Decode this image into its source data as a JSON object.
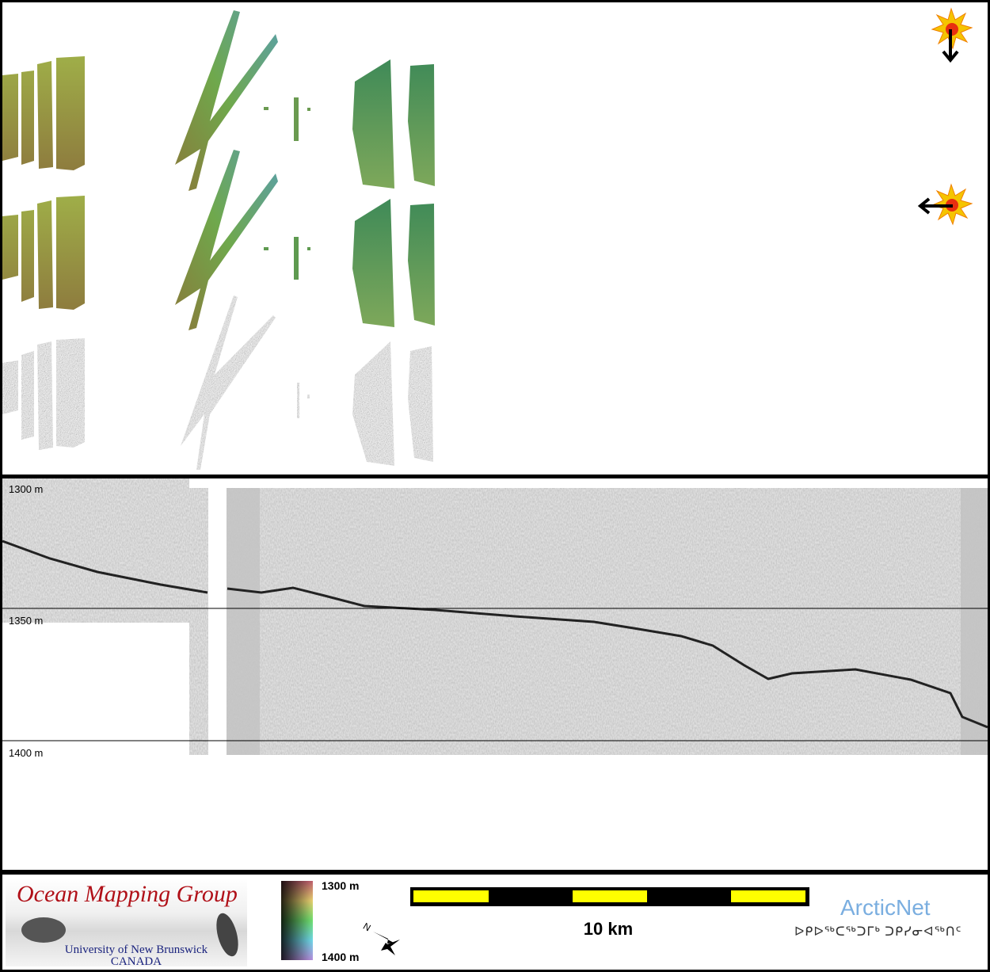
{
  "profile": {
    "depth_labels": [
      "1300 m",
      "1350 m",
      "1400 m"
    ]
  },
  "legend": {
    "logo_title": "Ocean Mapping Group",
    "logo_subtitle_1": "University of New Brunswick",
    "logo_subtitle_2": "CANADA",
    "colorbar_top": "1300 m",
    "colorbar_bottom": "1400 m",
    "north_label": "N",
    "scale_label": "10 km",
    "partner_name": "ArcticNet",
    "partner_inuktitut": "ᐅᑭᐅᖅᑕᖅᑐᒥᒃ ᑐᑭᓯᓂᐊᖅᑎᑦ"
  },
  "icons": {
    "sun_top": "sun-illumination-from-north-icon",
    "sun_right": "sun-illumination-from-east-icon"
  },
  "colors": {
    "scale_yellow": "#ffff00",
    "logo_red": "#b01018",
    "arcticnet_blue": "#7aaee0"
  }
}
